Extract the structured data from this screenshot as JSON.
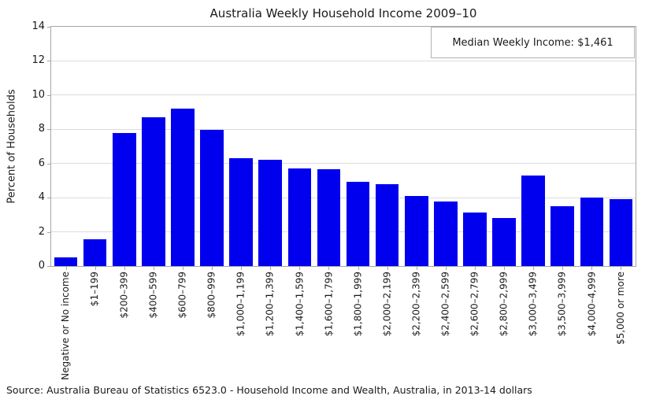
{
  "figure": {
    "source_note": "Source: Australia Bureau of Statistics 6523.0 - Household Income and Wealth, Australia, in 2013-14 dollars"
  },
  "chart_data": {
    "type": "bar",
    "title": "Australia Weekly Household Income 2009–10",
    "xlabel": "",
    "ylabel": "Percent of Households",
    "categories": [
      "Negative or No income",
      "$1–199",
      "$200–399",
      "$400–599",
      "$600–799",
      "$800–999",
      "$1,000–1,199",
      "$1,200–1,399",
      "$1,400–1,599",
      "$1,600–1,799",
      "$1,800–1,999",
      "$2,000–2,199",
      "$2,200–2,399",
      "$2,400–2,599",
      "$2,600–2,799",
      "$2,800–2,999",
      "$3,000–3,499",
      "$3,500–3,999",
      "$4,000–4,999",
      "$5,000 or more"
    ],
    "values": [
      0.5,
      1.55,
      7.8,
      8.7,
      9.2,
      7.95,
      6.3,
      6.2,
      5.7,
      5.65,
      4.95,
      4.8,
      4.1,
      3.8,
      3.15,
      2.8,
      5.3,
      3.5,
      4.0,
      3.9
    ],
    "ylim": [
      0,
      14
    ],
    "yticks": [
      0,
      2,
      4,
      6,
      8,
      10,
      12,
      14
    ],
    "grid": "horizontal",
    "legend": "none",
    "bar_width_fraction": 0.8,
    "x_tick_label_rotation": 90,
    "annotation": {
      "text": "Median Weekly Income: $1,461",
      "position": "top-right",
      "boxed": true
    },
    "colors": {
      "bar": "#0000ee",
      "spine": "#a6a6a6",
      "gridline": "#dcdcdc",
      "annotation_border": "#b3b3b3",
      "text": "#1a1a1a",
      "background": "#ffffff"
    }
  }
}
